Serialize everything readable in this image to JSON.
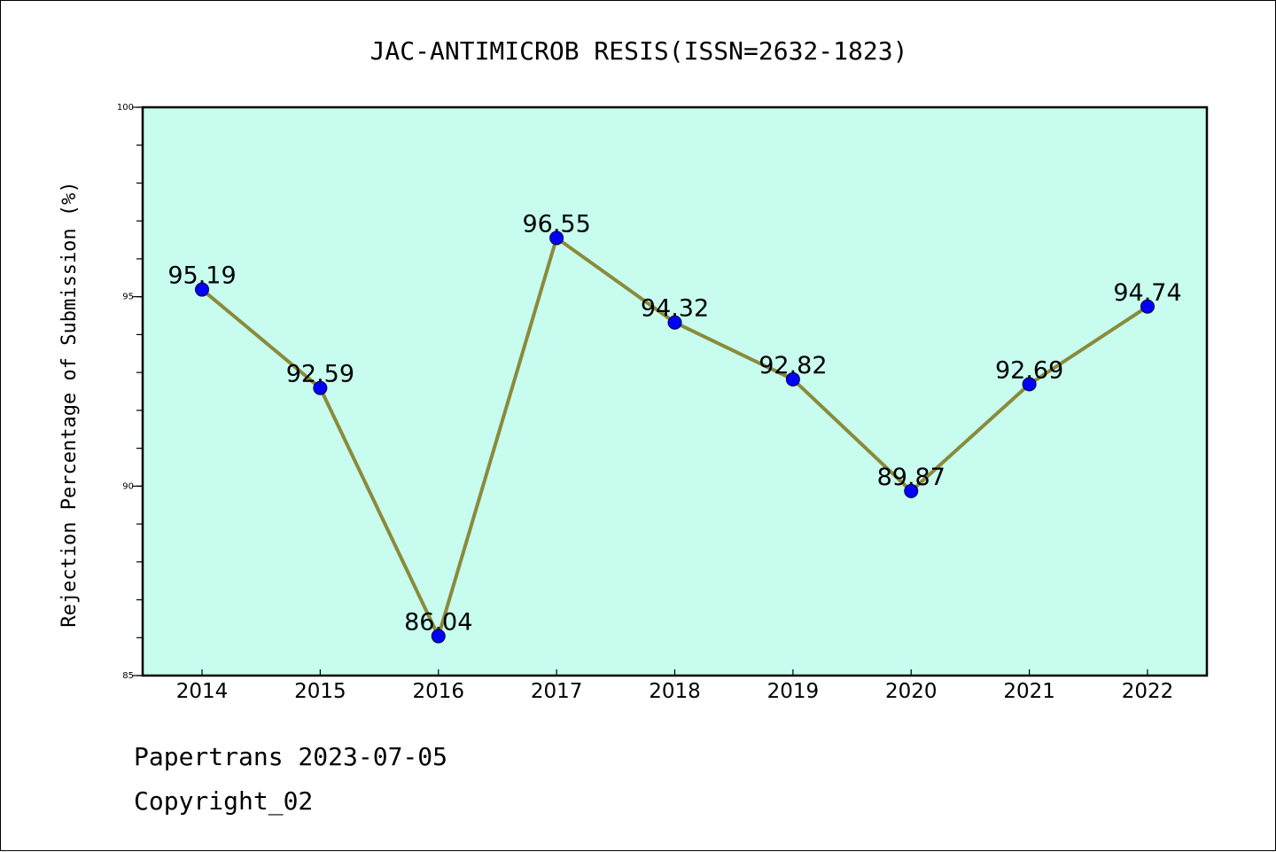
{
  "chart_data": {
    "type": "line",
    "title": "JAC-ANTIMICROB RESIS(ISSN=2632-1823)",
    "xlabel": "",
    "ylabel": "Rejection Percentage of Submission (%)",
    "categories": [
      "2014",
      "2015",
      "2016",
      "2017",
      "2018",
      "2019",
      "2020",
      "2021",
      "2022"
    ],
    "series": [
      {
        "values": [
          95.19,
          92.59,
          86.04,
          96.55,
          94.32,
          92.82,
          89.87,
          92.69,
          94.74
        ],
        "labels": [
          "95.19",
          "92.59",
          "86.04",
          "96.55",
          "94.32",
          "92.82",
          "89.87",
          "92.69",
          "94.74"
        ]
      }
    ],
    "ylim": [
      85,
      100
    ],
    "yticks": [
      "85",
      "90",
      "95",
      "100"
    ],
    "y_minor_step": 1,
    "grid": false,
    "legend": "none",
    "colors": {
      "plot_background": "#c7fcee",
      "line": "#8b8a3b",
      "marker": "#0000ff"
    }
  },
  "footer": {
    "line1": "Papertrans 2023-07-05",
    "line2": "Copyright_02"
  }
}
